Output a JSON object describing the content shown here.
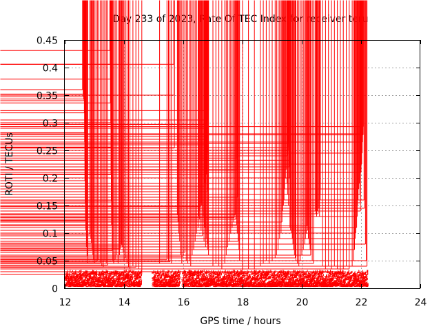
{
  "chart_data": {
    "type": "scatter",
    "title": "Day 233 of 2023, Rate Of TEC Index for receiver teru",
    "xlabel": "GPS time / hours",
    "ylabel": "ROTI / TECUs",
    "xlim": [
      12,
      24
    ],
    "ylim": [
      0,
      0.45
    ],
    "x_ticks": [
      12,
      14,
      16,
      18,
      20,
      22,
      24
    ],
    "y_ticks": [
      0,
      0.05,
      0.1,
      0.15,
      0.2,
      0.25,
      0.3,
      0.35,
      0.4,
      0.45
    ],
    "x_tick_labels": [
      "12",
      "14",
      "16",
      "18",
      "20",
      "22",
      "24"
    ],
    "y_tick_labels": [
      "0",
      "0.05",
      "0.1",
      "0.15",
      "0.2",
      "0.25",
      "0.3",
      "0.35",
      "0.4",
      "0.45"
    ],
    "grid": true,
    "marker": "+",
    "marker_color": "#ff0000",
    "baseline_band": {
      "x_start": 12.05,
      "x_end": 22.25,
      "y_min": 0.003,
      "y_max": 0.03
    },
    "gaps_hours": [
      [
        14.6,
        15.0
      ],
      [
        15.9,
        16.0
      ]
    ],
    "points": [
      [
        12.6,
        0.36
      ],
      [
        12.62,
        0.352
      ],
      [
        12.63,
        0.347
      ],
      [
        12.64,
        0.343
      ],
      [
        12.65,
        0.34
      ],
      [
        12.66,
        0.318
      ],
      [
        12.67,
        0.282
      ],
      [
        12.67,
        0.265
      ],
      [
        12.68,
        0.232
      ],
      [
        12.68,
        0.195
      ],
      [
        12.69,
        0.154
      ],
      [
        12.7,
        0.123
      ],
      [
        12.71,
        0.105
      ],
      [
        12.73,
        0.075
      ],
      [
        12.75,
        0.058
      ],
      [
        12.78,
        0.045
      ],
      [
        12.85,
        0.098
      ],
      [
        12.88,
        0.09
      ],
      [
        12.9,
        0.082
      ],
      [
        12.92,
        0.07
      ],
      [
        12.95,
        0.06
      ],
      [
        12.97,
        0.052
      ],
      [
        13.0,
        0.045
      ],
      [
        13.05,
        0.048
      ],
      [
        13.1,
        0.05
      ],
      [
        13.15,
        0.052
      ],
      [
        13.2,
        0.046
      ],
      [
        13.25,
        0.04
      ],
      [
        13.3,
        0.038
      ],
      [
        13.35,
        0.05
      ],
      [
        13.4,
        0.045
      ],
      [
        13.45,
        0.042
      ],
      [
        13.52,
        0.431
      ],
      [
        13.53,
        0.406
      ],
      [
        13.54,
        0.379
      ],
      [
        13.54,
        0.336
      ],
      [
        13.55,
        0.3
      ],
      [
        13.56,
        0.256
      ],
      [
        13.56,
        0.207
      ],
      [
        13.57,
        0.158
      ],
      [
        13.58,
        0.115
      ],
      [
        13.6,
        0.068
      ],
      [
        13.62,
        0.05
      ],
      [
        13.65,
        0.045
      ],
      [
        13.7,
        0.052
      ],
      [
        13.75,
        0.06
      ],
      [
        13.8,
        0.045
      ],
      [
        13.85,
        0.06
      ],
      [
        13.88,
        0.072
      ],
      [
        13.9,
        0.08
      ],
      [
        13.92,
        0.078
      ],
      [
        13.95,
        0.075
      ],
      [
        13.97,
        0.065
      ],
      [
        14.0,
        0.05
      ],
      [
        14.05,
        0.055
      ],
      [
        14.1,
        0.045
      ],
      [
        14.15,
        0.038
      ],
      [
        14.2,
        0.035
      ],
      [
        14.3,
        0.04
      ],
      [
        14.4,
        0.038
      ],
      [
        14.5,
        0.035
      ],
      [
        14.6,
        0.025
      ],
      [
        15.2,
        0.045
      ],
      [
        15.45,
        0.052
      ],
      [
        15.5,
        0.05
      ],
      [
        15.55,
        0.048
      ],
      [
        15.6,
        0.045
      ],
      [
        15.68,
        0.406
      ],
      [
        15.69,
        0.35
      ],
      [
        15.7,
        0.297
      ],
      [
        15.7,
        0.254
      ],
      [
        15.8,
        0.133
      ],
      [
        15.82,
        0.12
      ],
      [
        15.85,
        0.1
      ],
      [
        15.88,
        0.085
      ],
      [
        15.9,
        0.06
      ],
      [
        15.95,
        0.045
      ],
      [
        16.0,
        0.058
      ],
      [
        16.05,
        0.065
      ],
      [
        16.1,
        0.05
      ],
      [
        16.15,
        0.045
      ],
      [
        16.2,
        0.05
      ],
      [
        16.25,
        0.04
      ],
      [
        16.3,
        0.06
      ],
      [
        16.35,
        0.07
      ],
      [
        16.4,
        0.085
      ],
      [
        16.45,
        0.1
      ],
      [
        16.5,
        0.12
      ],
      [
        16.52,
        0.13
      ],
      [
        16.55,
        0.14
      ],
      [
        16.57,
        0.148
      ],
      [
        16.6,
        0.155
      ],
      [
        16.62,
        0.15
      ],
      [
        16.65,
        0.14
      ],
      [
        16.67,
        0.13
      ],
      [
        16.7,
        0.122
      ],
      [
        16.72,
        0.11
      ],
      [
        16.75,
        0.1
      ],
      [
        16.77,
        0.09
      ],
      [
        16.8,
        0.08
      ],
      [
        16.82,
        0.07
      ],
      [
        16.85,
        0.06
      ],
      [
        16.5,
        0.11
      ],
      [
        16.55,
        0.125
      ],
      [
        16.6,
        0.105
      ],
      [
        16.65,
        0.095
      ],
      [
        16.7,
        0.085
      ],
      [
        16.75,
        0.075
      ],
      [
        16.72,
        0.29
      ],
      [
        16.74,
        0.297
      ],
      [
        16.76,
        0.275
      ],
      [
        16.78,
        0.27
      ],
      [
        16.8,
        0.26
      ],
      [
        16.82,
        0.245
      ],
      [
        16.84,
        0.305
      ],
      [
        16.85,
        0.322
      ],
      [
        16.72,
        0.215
      ],
      [
        16.74,
        0.19
      ],
      [
        16.76,
        0.185
      ],
      [
        16.78,
        0.206
      ],
      [
        16.8,
        0.18
      ],
      [
        16.82,
        0.175
      ],
      [
        16.85,
        0.16
      ],
      [
        16.76,
        0.25
      ],
      [
        17.0,
        0.04
      ],
      [
        17.1,
        0.045
      ],
      [
        17.2,
        0.04
      ],
      [
        17.3,
        0.035
      ],
      [
        17.4,
        0.045
      ],
      [
        17.45,
        0.06
      ],
      [
        17.5,
        0.075
      ],
      [
        17.55,
        0.085
      ],
      [
        17.6,
        0.1
      ],
      [
        17.65,
        0.11
      ],
      [
        17.7,
        0.12
      ],
      [
        17.72,
        0.128
      ],
      [
        17.75,
        0.133
      ],
      [
        17.77,
        0.125
      ],
      [
        17.8,
        0.115
      ],
      [
        17.82,
        0.1
      ],
      [
        17.85,
        0.085
      ],
      [
        17.88,
        0.07
      ],
      [
        17.9,
        0.05
      ],
      [
        17.8,
        0.236
      ],
      [
        17.82,
        0.214
      ],
      [
        17.84,
        0.165
      ],
      [
        18.0,
        0.03
      ],
      [
        18.2,
        0.035
      ],
      [
        18.4,
        0.035
      ],
      [
        18.6,
        0.04
      ],
      [
        18.7,
        0.045
      ],
      [
        18.8,
        0.05
      ],
      [
        18.9,
        0.045
      ],
      [
        19.0,
        0.05
      ],
      [
        19.1,
        0.055
      ],
      [
        19.15,
        0.06
      ],
      [
        19.2,
        0.07
      ],
      [
        19.25,
        0.09
      ],
      [
        19.3,
        0.1
      ],
      [
        19.33,
        0.12
      ],
      [
        19.35,
        0.14
      ],
      [
        19.38,
        0.15
      ],
      [
        19.4,
        0.16
      ],
      [
        19.42,
        0.18
      ],
      [
        19.45,
        0.2
      ],
      [
        19.47,
        0.215
      ],
      [
        19.5,
        0.225
      ],
      [
        19.52,
        0.24
      ],
      [
        19.53,
        0.255
      ],
      [
        19.54,
        0.262
      ],
      [
        19.55,
        0.25
      ],
      [
        19.56,
        0.232
      ],
      [
        19.57,
        0.22
      ],
      [
        19.58,
        0.2
      ],
      [
        19.6,
        0.18
      ],
      [
        19.62,
        0.16
      ],
      [
        19.5,
        0.19
      ],
      [
        19.52,
        0.17
      ],
      [
        19.55,
        0.15
      ],
      [
        19.6,
        0.11
      ],
      [
        19.62,
        0.105
      ],
      [
        19.65,
        0.1
      ],
      [
        19.68,
        0.09
      ],
      [
        19.7,
        0.08
      ],
      [
        19.72,
        0.07
      ],
      [
        19.75,
        0.06
      ],
      [
        19.78,
        0.055
      ],
      [
        19.8,
        0.05
      ],
      [
        19.85,
        0.045
      ],
      [
        19.9,
        0.04
      ],
      [
        19.95,
        0.05
      ],
      [
        20.0,
        0.06
      ],
      [
        20.05,
        0.07
      ],
      [
        20.1,
        0.08
      ],
      [
        20.12,
        0.09
      ],
      [
        20.15,
        0.1
      ],
      [
        20.18,
        0.113
      ],
      [
        20.2,
        0.105
      ],
      [
        20.22,
        0.09
      ],
      [
        20.25,
        0.08
      ],
      [
        20.28,
        0.07
      ],
      [
        20.3,
        0.06
      ],
      [
        20.35,
        0.05
      ],
      [
        20.4,
        0.045
      ],
      [
        20.45,
        0.14
      ],
      [
        20.48,
        0.135
      ],
      [
        20.5,
        0.13
      ],
      [
        20.52,
        0.14
      ],
      [
        20.55,
        0.135
      ],
      [
        20.58,
        0.145
      ],
      [
        20.6,
        0.13
      ],
      [
        20.62,
        0.19
      ],
      [
        20.62,
        0.18
      ],
      [
        20.62,
        0.17
      ],
      [
        20.62,
        0.16
      ],
      [
        20.7,
        0.04
      ],
      [
        20.8,
        0.035
      ],
      [
        20.9,
        0.04
      ],
      [
        21.0,
        0.035
      ],
      [
        21.1,
        0.04
      ],
      [
        21.2,
        0.035
      ],
      [
        21.3,
        0.03
      ],
      [
        21.4,
        0.035
      ],
      [
        21.5,
        0.04
      ],
      [
        21.6,
        0.035
      ],
      [
        21.7,
        0.04
      ],
      [
        21.75,
        0.05
      ],
      [
        21.78,
        0.07
      ],
      [
        21.8,
        0.09
      ],
      [
        21.82,
        0.1
      ],
      [
        21.85,
        0.11
      ],
      [
        21.87,
        0.13
      ],
      [
        21.88,
        0.15
      ],
      [
        21.9,
        0.16
      ],
      [
        21.92,
        0.18
      ],
      [
        21.94,
        0.19
      ],
      [
        21.96,
        0.17
      ],
      [
        21.97,
        0.155
      ],
      [
        21.98,
        0.14
      ],
      [
        22.0,
        0.21
      ],
      [
        22.02,
        0.225
      ],
      [
        22.04,
        0.245
      ],
      [
        22.05,
        0.265
      ],
      [
        22.06,
        0.28
      ],
      [
        22.07,
        0.278
      ],
      [
        22.08,
        0.293
      ],
      [
        22.1,
        0.16
      ],
      [
        22.12,
        0.145
      ],
      [
        22.15,
        0.08
      ],
      [
        22.18,
        0.05
      ],
      [
        22.2,
        0.04
      ]
    ]
  }
}
